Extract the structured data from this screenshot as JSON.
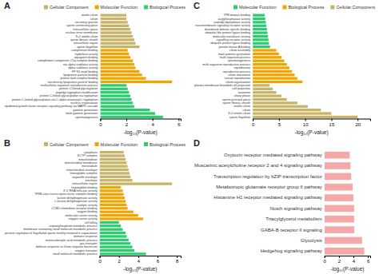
{
  "chart_data": [
    {
      "type": "bar",
      "orientation": "horizontal",
      "title": "A",
      "x_label": "-log₁₀(P-value)",
      "categories": [
        "motile cilium",
        "cilium",
        "secretory granule",
        "sperm connecting piece",
        "extracellular space",
        "nuclear inner membrane",
        "9+2 motile cilium",
        "sperm fibrous sheath",
        "intracellular region",
        "sperm flagellum",
        "complement binding",
        "hydrolase activity",
        "aquaporin binding",
        "complement component C1q complex binding",
        "eta alpha stabilase activity",
        "alpha stabilase activity",
        "FP:S1 motif binding",
        "lipoprotein particle binding",
        "protein lipid complex binding",
        "low density lipoprotein particle binding",
        "multicellular organism reproductive process",
        "protein C-linked glycosylation",
        "peptidyl-tryptophan modification",
        "protein C-linked glycosylation via tryptophan",
        "protein C-linked glycosylation via C-alpha-mannosyl-L-tryptophan",
        "nucleus organization",
        "epidermal growth factor receptor signaling pathway via MAPK cascade",
        "gamete generation",
        "male gamete generation",
        "spermatogenesis"
      ],
      "series": [
        {
          "name": "Cellular Component",
          "color": "#c8b469",
          "values": [
            2.0,
            2.0,
            2.1,
            2.2,
            2.3,
            2.4,
            2.5,
            2.6,
            2.7,
            3.0,
            null,
            null,
            null,
            null,
            null,
            null,
            null,
            null,
            null,
            null,
            null,
            null,
            null,
            null,
            null,
            null,
            null,
            null,
            null,
            null
          ]
        },
        {
          "name": "Molecular Function",
          "color": "#f0a500",
          "values": [
            null,
            null,
            null,
            null,
            null,
            null,
            null,
            null,
            null,
            null,
            2.1,
            2.2,
            2.3,
            2.5,
            2.6,
            2.7,
            3.0,
            3.2,
            3.5,
            5.5,
            null,
            null,
            null,
            null,
            null,
            null,
            null,
            null,
            null,
            null
          ]
        },
        {
          "name": "Biological Process",
          "color": "#2ecc71",
          "values": [
            null,
            null,
            null,
            null,
            null,
            null,
            null,
            null,
            null,
            null,
            null,
            null,
            null,
            null,
            null,
            null,
            null,
            null,
            null,
            null,
            2.0,
            2.1,
            2.2,
            2.3,
            2.4,
            2.5,
            2.6,
            3.8,
            4.2,
            4.8
          ]
        }
      ],
      "xlim": [
        0,
        6.16
      ],
      "xticks": [
        0,
        2,
        4,
        6
      ],
      "grid": false,
      "legend": "upper right"
    },
    {
      "type": "bar",
      "orientation": "horizontal",
      "title": "B",
      "x_label": "-log₁₀(P-value)",
      "categories": [
        "cytoplasm",
        "KCTP complex",
        "mitochondrion",
        "mitochondrial membrane",
        "microtubule",
        "mitochondrial envelope",
        "hemoglobin complex",
        "organelle envelope",
        "envelope",
        "extracellular region",
        "haptoglobin binding",
        "3'-5' RNA helicase activity",
        "TFIIB-class transcription factor complex binding",
        "lactate dehydrogenase activity",
        "L-lactate dehydrogenase activity",
        "catalytic activity",
        "CCBD chemokine receptor binding",
        "oxygen binding",
        "molecular carrier activity",
        "oxygen carrier activity",
        "cell killing",
        "organophosphate metabolic process",
        "membrane containing small molecule metabolic process",
        "positive regulation of flagellated sperm motility involved in capacitation",
        "immune response",
        "monocarboxylic acid metabolic process",
        "gas transport",
        "defense response to Gram-negative bacterium",
        "oxygen transport",
        "small molecule metabolic process"
      ],
      "series": [
        {
          "name": "Cellular Component",
          "color": "#c8b469",
          "values": [
            2.5,
            2.6,
            2.7,
            2.8,
            2.9,
            3.0,
            3.1,
            3.2,
            3.4,
            7.5,
            null,
            null,
            null,
            null,
            null,
            null,
            null,
            null,
            null,
            null,
            null,
            null,
            null,
            null,
            null,
            null,
            null,
            null,
            null,
            null
          ]
        },
        {
          "name": "Molecular Function",
          "color": "#f0a500",
          "values": [
            null,
            null,
            null,
            null,
            null,
            null,
            null,
            null,
            null,
            null,
            2.2,
            2.4,
            2.5,
            2.6,
            2.7,
            2.8,
            2.9,
            3.5,
            4.0,
            4.5,
            null,
            null,
            null,
            null,
            null,
            null,
            null,
            null,
            null,
            null
          ]
        },
        {
          "name": "Biological Process",
          "color": "#2ecc71",
          "values": [
            null,
            null,
            null,
            null,
            null,
            null,
            null,
            null,
            null,
            null,
            null,
            null,
            null,
            null,
            null,
            null,
            null,
            null,
            null,
            null,
            2.0,
            2.2,
            2.4,
            2.7,
            2.8,
            3.0,
            3.2,
            3.4,
            3.6,
            4.8
          ]
        }
      ],
      "xlim": [
        0,
        8.4
      ],
      "xticks": [
        0,
        2,
        4,
        6,
        8
      ],
      "grid": false,
      "legend": "upper right"
    },
    {
      "type": "bar",
      "orientation": "horizontal",
      "title": "C",
      "x_label": "-log₁₀(P-value)",
      "categories": [
        "TPR domain binding",
        "acylphosphatase activity",
        "peptidyl-dipeptidase activity",
        "transmembrane signaling receptor activity",
        "disordered domain specific binding",
        "ubiquitin-like protein ligase binding",
        "molecular transducer activity",
        "signalling receptor activity",
        "ubiquitin protein ligase binding",
        "protein kinase A binding",
        "cilium assembly",
        "male gamete generation",
        "multi organism process",
        "spermatogenesis",
        "multi organism reproductive process",
        "reproduction",
        "reproductive process",
        "cilium movement",
        "sexual reproduction",
        "cilium organization",
        "plasma membrane bounded cell projection",
        "cell projection",
        "axoneme",
        "ciliary phase",
        "sperm principal piece",
        "sperm fibrous sheath",
        "motile cilium",
        "cilium",
        "9+2 motile cilium",
        "sperm flagellum"
      ],
      "series": [
        {
          "name": "Molecular Function",
          "color": "#2ecc71",
          "values": [
            2.3,
            2.4,
            2.5,
            2.6,
            2.7,
            2.8,
            2.9,
            3.0,
            3.1,
            3.3,
            null,
            null,
            null,
            null,
            null,
            null,
            null,
            null,
            null,
            null,
            null,
            null,
            null,
            null,
            null,
            null,
            null,
            null,
            null,
            null
          ]
        },
        {
          "name": "Biological Process",
          "color": "#f0a500",
          "values": [
            null,
            null,
            null,
            null,
            null,
            null,
            null,
            null,
            null,
            null,
            4.5,
            5.0,
            5.5,
            6.0,
            6.5,
            7.0,
            7.5,
            8.0,
            8.5,
            9.5,
            null,
            null,
            null,
            null,
            null,
            null,
            null,
            null,
            null,
            null
          ]
        },
        {
          "name": "Cellular Component",
          "color": "#c8b469",
          "values": [
            null,
            null,
            null,
            null,
            null,
            null,
            null,
            null,
            null,
            null,
            null,
            null,
            null,
            null,
            null,
            null,
            null,
            null,
            null,
            null,
            3.2,
            3.8,
            4.5,
            5.5,
            6.5,
            8.5,
            10.5,
            13.0,
            15.0,
            20.0
          ]
        }
      ],
      "xlim": [
        0,
        22.4
      ],
      "xticks": [
        0,
        5,
        10,
        15,
        20
      ],
      "grid": false,
      "legend": "upper right"
    },
    {
      "type": "bar",
      "orientation": "horizontal",
      "title": "D",
      "x_label": "-log₁₀(P-value)",
      "categories": [
        "Oxytocin receptor mediated signaling pathway",
        "Muscarinic acetylcholine receptor 2 and 4 signaling pathway",
        "Transcription regulation by bZIP transcription factor",
        "Metabotropic glutamate receptor group II pathway",
        "Histamine H1 receptor mediated signaling pathway",
        "Notch signaling pathway",
        "Triacylglycerol metabolism",
        "GABA-B receptor II signaling",
        "Glycolysis",
        "Hedgehog signaling pathway"
      ],
      "values": [
        3.5,
        3.6,
        3.7,
        3.9,
        4.0,
        4.1,
        4.1,
        4.1,
        5.2,
        5.5
      ],
      "color": "#f4a9a8",
      "xlim": [
        0,
        6.325
      ],
      "xticks": [
        0,
        2,
        4,
        6
      ],
      "grid": false
    }
  ]
}
